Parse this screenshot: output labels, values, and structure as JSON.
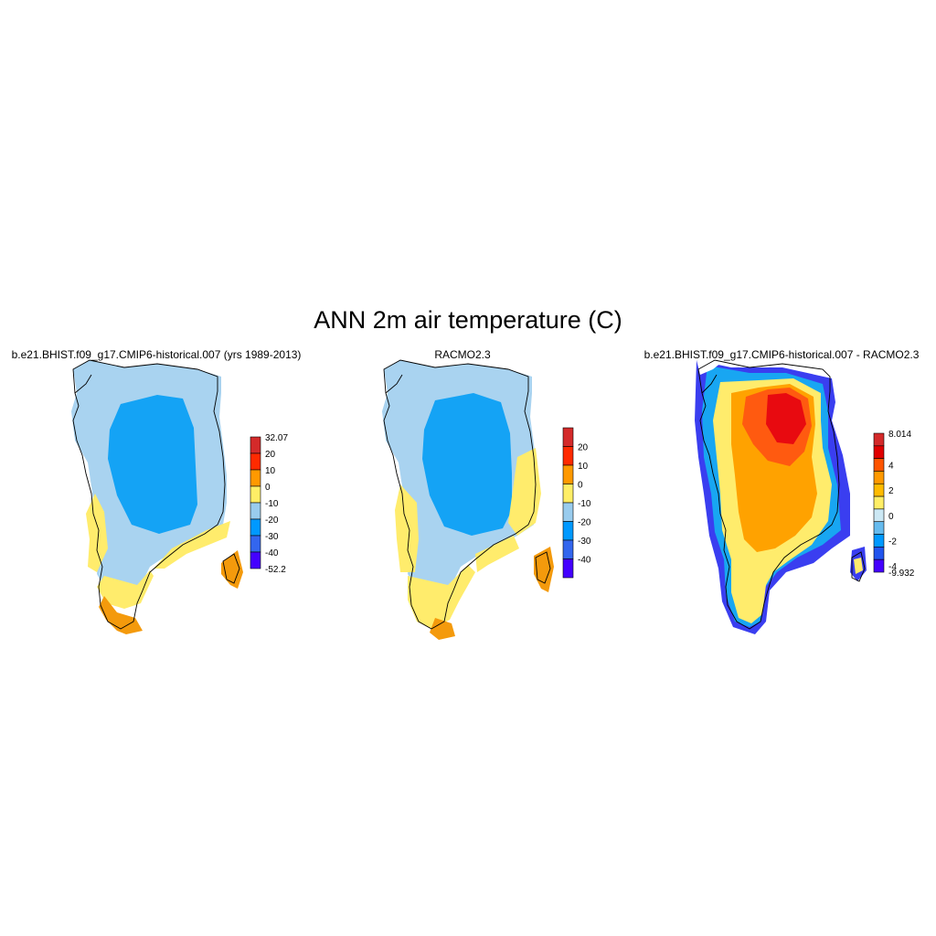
{
  "figure": {
    "title": "ANN 2m air temperature (C)",
    "panels": [
      {
        "title": "b.e21.BHIST.f09_g17.CMIP6-historical.007 (yrs 1989-2013)",
        "colorbar": {
          "labels": [
            "32.07",
            "20",
            "10",
            "0",
            "-10",
            "-20",
            "-30",
            "-40",
            "-52.2"
          ],
          "colors": [
            "#d42a2a",
            "#ff2a00",
            "#ff9900",
            "#ffee66",
            "#99ccee",
            "#0099ff",
            "#3366ee",
            "#4400ff"
          ]
        }
      },
      {
        "title": "RACMO2.3",
        "colorbar": {
          "labels": [
            "20",
            "10",
            "0",
            "-10",
            "-20",
            "-30",
            "-40"
          ],
          "colors": [
            "#d42a2a",
            "#ff2a00",
            "#ff9900",
            "#ffee66",
            "#99ccee",
            "#0099ff",
            "#3366ee",
            "#4400ff"
          ]
        }
      },
      {
        "title": "b.e21.BHIST.f09_g17.CMIP6-historical.007 - RACMO2.3",
        "colorbar": {
          "labels": [
            "8.014",
            "4",
            "2",
            "0",
            "-2",
            "-4",
            "-9.932"
          ],
          "colors": [
            "#d42a2a",
            "#e00000",
            "#ff5500",
            "#ff9900",
            "#ffbb00",
            "#ffee66",
            "#cce8f4",
            "#66bbee",
            "#0099ff",
            "#2255ee",
            "#4400ff"
          ]
        }
      }
    ]
  }
}
